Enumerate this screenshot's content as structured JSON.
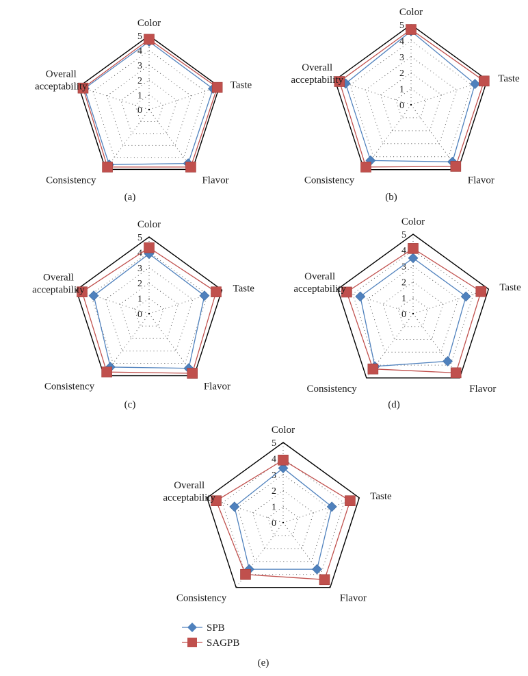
{
  "chart_data": [
    {
      "type": "radar",
      "panel_label": "(a)",
      "axes": [
        "Color",
        "Taste",
        "Flavor",
        "Consistency",
        "Overall acceptability"
      ],
      "range": [
        0,
        5
      ],
      "ticks": [
        "0",
        "1",
        "2",
        "3",
        "4",
        "5"
      ],
      "series": [
        {
          "name": "SPB",
          "values": [
            4.6,
            4.55,
            4.5,
            4.6,
            4.6
          ]
        },
        {
          "name": "SAGPB",
          "values": [
            4.75,
            4.85,
            4.8,
            4.8,
            4.7
          ]
        }
      ]
    },
    {
      "type": "radar",
      "panel_label": "(b)",
      "axes": [
        "Color",
        "Taste",
        "Flavor",
        "Consistency",
        "Overall acceptability"
      ],
      "range": [
        0,
        5
      ],
      "ticks": [
        "0",
        "1",
        "2",
        "3",
        "4",
        "5"
      ],
      "series": [
        {
          "name": "SPB",
          "values": [
            4.6,
            4.2,
            4.4,
            4.3,
            4.3
          ]
        },
        {
          "name": "SAGPB",
          "values": [
            4.7,
            4.8,
            4.75,
            4.8,
            4.7
          ]
        }
      ]
    },
    {
      "type": "radar",
      "panel_label": "(c)",
      "axes": [
        "Color",
        "Taste",
        "Flavor",
        "Consistency",
        "Overall acceptability"
      ],
      "range": [
        0,
        5
      ],
      "ticks": [
        "0",
        "1",
        "2",
        "3",
        "4",
        "5"
      ],
      "series": [
        {
          "name": "SPB",
          "values": [
            3.9,
            3.8,
            4.4,
            4.3,
            3.8
          ]
        },
        {
          "name": "SAGPB",
          "values": [
            4.3,
            4.6,
            4.8,
            4.7,
            4.6
          ]
        }
      ]
    },
    {
      "type": "radar",
      "panel_label": "(d)",
      "axes": [
        "Color",
        "Taste",
        "Flavor",
        "Consistency",
        "Overall acceptability"
      ],
      "range": [
        0,
        5
      ],
      "ticks": [
        "0",
        "1",
        "2",
        "3",
        "4",
        "5"
      ],
      "series": [
        {
          "name": "SPB",
          "values": [
            3.5,
            3.5,
            3.7,
            4.1,
            3.5
          ]
        },
        {
          "name": "SAGPB",
          "values": [
            4.1,
            4.5,
            4.6,
            4.3,
            4.4
          ]
        }
      ]
    },
    {
      "type": "radar",
      "panel_label": "(e)",
      "axes": [
        "Color",
        "Taste",
        "Flavor",
        "Consistency",
        "Overall acceptability"
      ],
      "range": [
        0,
        5
      ],
      "ticks": [
        "0",
        "1",
        "2",
        "3",
        "4",
        "5"
      ],
      "series": [
        {
          "name": "SPB",
          "values": [
            3.4,
            3.2,
            3.6,
            3.6,
            3.2
          ]
        },
        {
          "name": "SAGPB",
          "values": [
            3.9,
            4.4,
            4.4,
            4.0,
            4.4
          ]
        }
      ]
    }
  ],
  "legend": {
    "items": [
      {
        "name": "SPB",
        "marker": "diamond",
        "color": "#4f81bd"
      },
      {
        "name": "SAGPB",
        "marker": "square",
        "color": "#c0504d"
      }
    ]
  },
  "colors": {
    "SPB": "#4f81bd",
    "SAGPB": "#c0504d",
    "frame": "#000000",
    "grid": "#555555"
  }
}
